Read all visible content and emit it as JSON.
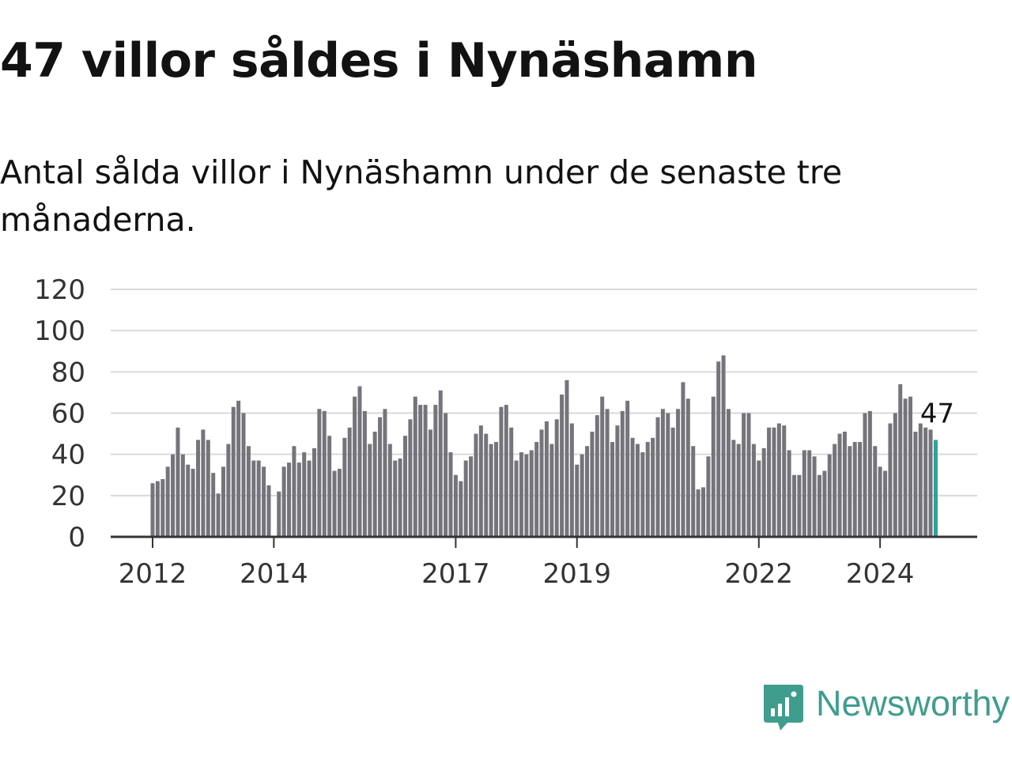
{
  "title": "47 villor såldes i Nynäshamn",
  "subtitle": "Antal sålda villor i Nynäshamn under de senaste tre månaderna.",
  "brand": {
    "name": "Newsworthy",
    "icon": "newsworthy-logo-icon",
    "color": "#3f9d8e"
  },
  "colors": {
    "bar": "#75747a",
    "highlight": "#2aa39a",
    "grid": "#d9d9d9",
    "axis": "#333333"
  },
  "chart_data": {
    "type": "bar",
    "ylim": [
      0,
      120
    ],
    "yticks": [
      "0",
      "20",
      "40",
      "60",
      "80",
      "100",
      "120"
    ],
    "xticks": [
      {
        "label": "2012",
        "index": 0
      },
      {
        "label": "2014",
        "index": 24
      },
      {
        "label": "2017",
        "index": 60
      },
      {
        "label": "2019",
        "index": 84
      },
      {
        "label": "2022",
        "index": 120
      },
      {
        "label": "2024",
        "index": 144
      }
    ],
    "grid": true,
    "highlight_label": "47",
    "series": [
      {
        "values": [
          26,
          27,
          28,
          34,
          40,
          53,
          40,
          35,
          33,
          47,
          52,
          47,
          31,
          21,
          34,
          45,
          63,
          66,
          60,
          44,
          37,
          37,
          34,
          25,
          0,
          22,
          34,
          36,
          44,
          36,
          41,
          37,
          43,
          62,
          61,
          49,
          32,
          33,
          48,
          53,
          68,
          73,
          61,
          45,
          51,
          58,
          62,
          45,
          37,
          38,
          49,
          57,
          68,
          64,
          64,
          52,
          64,
          71,
          60,
          41,
          30,
          27,
          37,
          39,
          50,
          54,
          50,
          45,
          46,
          63,
          64,
          53,
          37,
          41,
          40,
          42,
          46,
          52,
          56,
          45,
          57,
          69,
          76,
          55,
          35,
          40,
          44,
          51,
          59,
          68,
          62,
          46,
          54,
          61,
          66,
          48,
          45,
          41,
          46,
          48,
          58,
          62,
          60,
          53,
          62,
          75,
          67,
          44,
          23,
          24,
          39,
          68,
          85,
          88,
          62,
          47,
          45,
          60,
          60,
          45,
          37,
          43,
          53,
          53,
          55,
          54,
          42,
          30,
          30,
          42,
          42,
          39,
          30,
          32,
          40,
          45,
          50,
          51,
          44,
          46,
          46,
          60,
          61,
          44,
          34,
          32,
          55,
          60,
          74,
          67,
          68,
          51,
          55,
          53,
          52,
          47
        ]
      }
    ]
  }
}
